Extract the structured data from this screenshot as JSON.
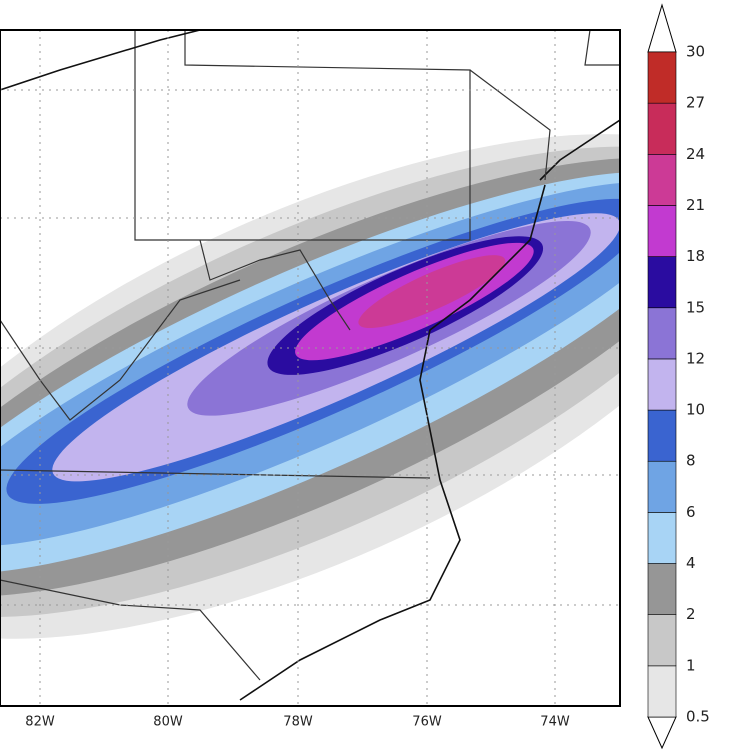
{
  "map": {
    "x_labels": [
      "82W",
      "80W",
      "78W",
      "76W",
      "74W"
    ]
  },
  "legend": {
    "levels": [
      0.5,
      1,
      2,
      4,
      6,
      8,
      10,
      12,
      15,
      18,
      21,
      24,
      27,
      30
    ],
    "colors": [
      "#e6e6e6",
      "#c8c8c8",
      "#969696",
      "#a8d4f5",
      "#6fa4e4",
      "#3a64d0",
      "#c2b4ee",
      "#8b74d6",
      "#2a0ca0",
      "#c23ad0",
      "#cc3a96",
      "#c82c5a",
      "#c02c28"
    ]
  }
}
